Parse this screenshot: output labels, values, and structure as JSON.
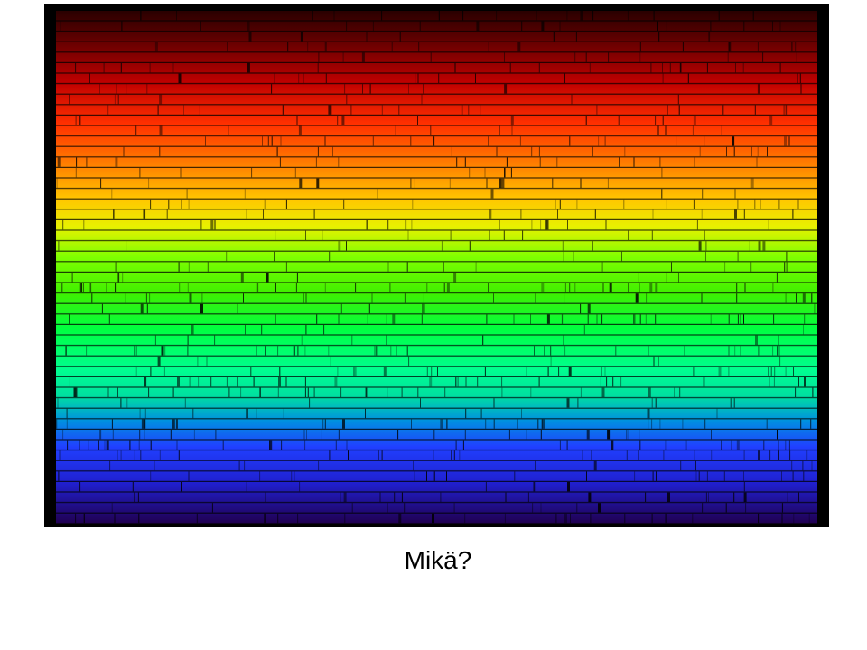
{
  "caption": "Mikä?"
}
